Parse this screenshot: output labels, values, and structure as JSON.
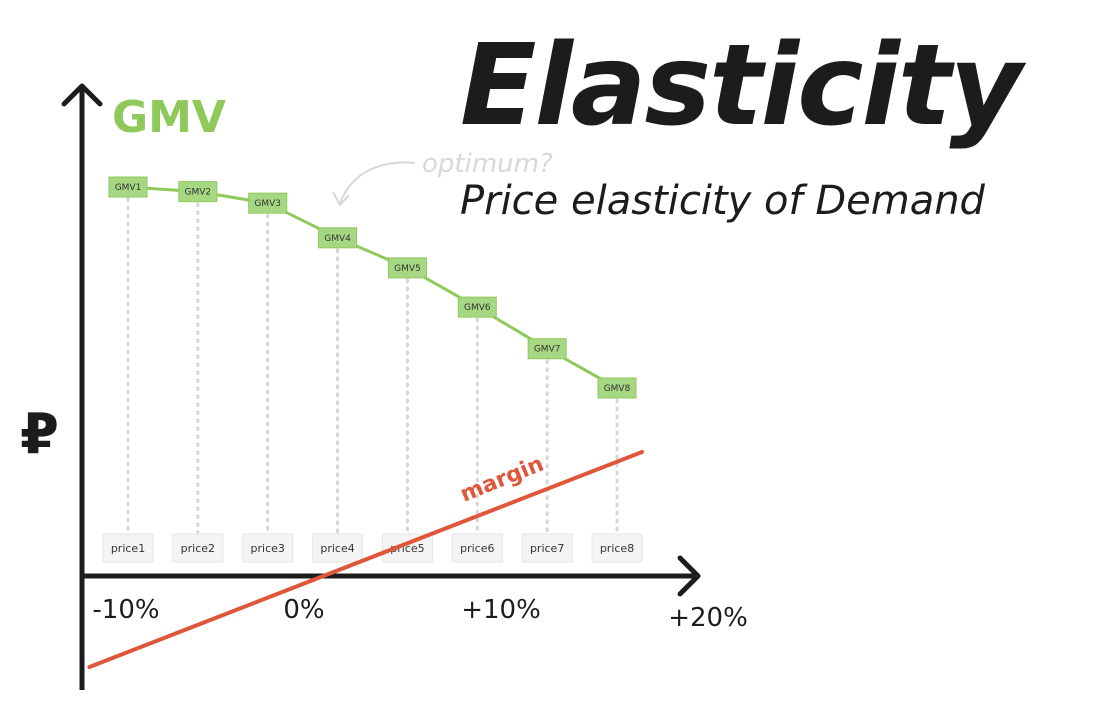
{
  "chart_data": {
    "type": "line",
    "title": "Elasticity",
    "subtitle": "Price elasticity of Demand",
    "ylabel": "GMV",
    "currency_symbol": "₽",
    "x_tick_labels": [
      "-10%",
      "0%",
      "+10%",
      "+20%"
    ],
    "x_tick_values": [
      -10,
      0,
      10,
      20
    ],
    "xlim": [
      -12,
      21
    ],
    "ylim": [
      0,
      100
    ],
    "categories": [
      "price1",
      "price2",
      "price3",
      "price4",
      "price5",
      "price6",
      "price7",
      "price8"
    ],
    "category_x": [
      -9.5,
      -7.5,
      -5.5,
      -3.5,
      -1.5,
      0.5,
      2.5,
      4.5
    ],
    "series": [
      {
        "name": "GMV",
        "color": "#8fc95a",
        "point_labels": [
          "GMV1",
          "GMV2",
          "GMV3",
          "GMV4",
          "GMV5",
          "GMV6",
          "GMV7",
          "GMV8"
        ],
        "values": [
          82,
          81,
          78.5,
          71,
          64.5,
          56,
          47,
          38.5
        ]
      },
      {
        "name": "margin",
        "color": "#e0563a",
        "x": [
          -11,
          6
        ],
        "values": [
          -20,
          28
        ]
      }
    ],
    "annotations": [
      {
        "text": "optimum?",
        "color": "#d8d8d8"
      },
      {
        "text": "margin",
        "color": "#e0563a"
      }
    ],
    "grid": false,
    "legend": "none"
  }
}
